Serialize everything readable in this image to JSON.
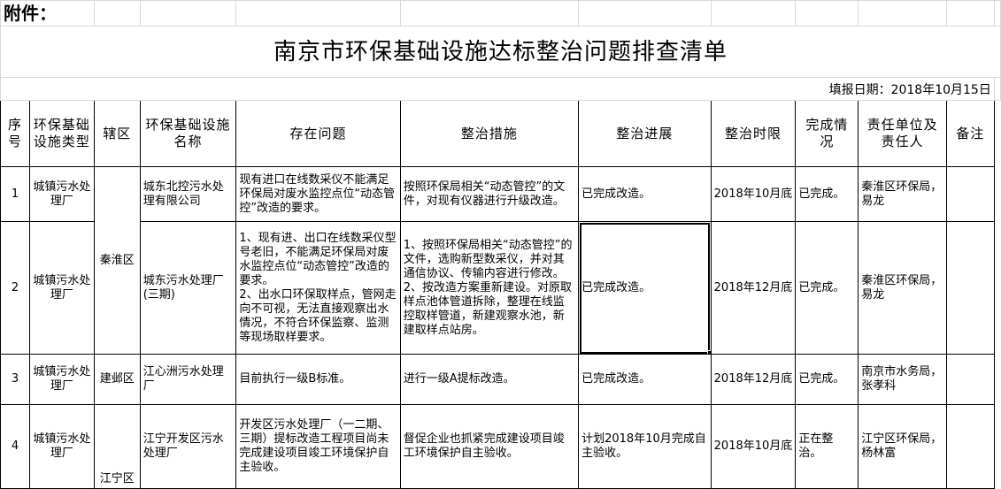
{
  "attachment_label": "附件：",
  "title": "南京市环保基础设施达标整治问题排查清单",
  "report_date": "填报日期：2018年10月15日",
  "headers": [
    "序号",
    "环保基础设施类型",
    "辖区",
    "环保基础设施名称",
    "存在问题",
    "整治措施",
    "整治进展",
    "整治时限",
    "完成情况",
    "责任单位及责任人",
    "备注"
  ],
  "rows": [
    {
      "no": "1",
      "type": "城镇污水处理厂",
      "district": "秦淮区",
      "name": "城东北控污水处理有限公司",
      "issue": "现有进口在线数采仪不能满足环保局对废水监控点位“动态管控”改造的要求。",
      "measure": "按照环保局相关“动态管控”的文件，对现有仪器进行升级改造。",
      "progress": "已完成改造。",
      "deadline": "2018年10月底",
      "status": "已完成。",
      "owner": "秦淮区环保局，易龙",
      "note": ""
    },
    {
      "no": "2",
      "type": "城镇污水处理厂",
      "district": "秦淮区",
      "name": "城东污水处理厂(三期)",
      "issue": "1、现有进、出口在线数采仪型号老旧，不能满足环保局对废水监控点位“动态管控”改造的要求。\n2、出水口环保取样点，管网走向不可视，无法直接观察出水情况，不符合环保监察、监测等现场取样要求。",
      "measure": "1、按照环保局相关“动态管控”的文件，选购新型数采仪，并对其通信协议、传输内容进行修改。\n2、按改造方案重新建设。对原取样点池体管道拆除，整理在线监控取样管道，新建观察水池，新建取样点站房。",
      "progress": "已完成改造。",
      "deadline": "2018年12月底",
      "status": "已完成。",
      "owner": "秦淮区环保局，易龙",
      "note": ""
    },
    {
      "no": "3",
      "type": "城镇污水处理厂",
      "district": "建邺区",
      "name": "江心洲污水处理厂",
      "issue": "目前执行一级B标准。",
      "measure": "进行一级A提标改造。",
      "progress": "已完成改造。",
      "deadline": "2018年12月底",
      "status": "已完成。",
      "owner": "南京市水务局，张孝科",
      "note": ""
    },
    {
      "no": "4",
      "type": "城镇污水处理厂",
      "district": "江宁区",
      "name": "江宁开发区污水处理厂",
      "issue": "开发区污水处理厂（一二期、三期）提标改造工程项目尚未完成建设项目竣工环境保护自主验收。",
      "measure": "督促企业也抓紧完成建设项目竣工环境保护自主验收。",
      "progress": "计划2018年10月完成自主验收。",
      "deadline": "2018年10月底",
      "status": "正在整治。",
      "owner": "江宁区环保局，杨林富",
      "note": ""
    }
  ]
}
